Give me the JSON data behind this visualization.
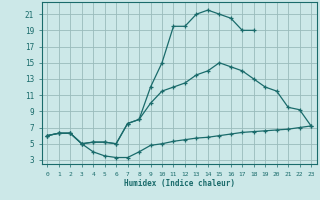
{
  "xlabel": "Humidex (Indice chaleur)",
  "xlim": [
    -0.5,
    23.5
  ],
  "ylim": [
    2.5,
    22.5
  ],
  "xticks": [
    0,
    1,
    2,
    3,
    4,
    5,
    6,
    7,
    8,
    9,
    10,
    11,
    12,
    13,
    14,
    15,
    16,
    17,
    18,
    19,
    20,
    21,
    22,
    23
  ],
  "yticks": [
    3,
    5,
    7,
    9,
    11,
    13,
    15,
    17,
    19,
    21
  ],
  "background_color": "#cce8e8",
  "grid_color": "#99bbbb",
  "line_color": "#1a6b6b",
  "c1_x": [
    0,
    1,
    2,
    3,
    4,
    5,
    6,
    7,
    8,
    9,
    10,
    11,
    12,
    13,
    14,
    15,
    16,
    17,
    18
  ],
  "c1_y": [
    6.0,
    6.3,
    6.3,
    5.0,
    5.2,
    5.2,
    5.0,
    7.5,
    8.0,
    12.0,
    15.0,
    19.5,
    19.5,
    21.0,
    21.5,
    21.0,
    20.5,
    19.0,
    19.0
  ],
  "c2_x": [
    0,
    1,
    2,
    3,
    4,
    5,
    6,
    7,
    8,
    9,
    10,
    11,
    12,
    13,
    14,
    15,
    16,
    17,
    18,
    19,
    20,
    21,
    22,
    23
  ],
  "c2_y": [
    6.0,
    6.3,
    6.3,
    5.0,
    5.2,
    5.2,
    5.0,
    7.5,
    8.0,
    10.0,
    11.5,
    12.0,
    12.5,
    13.5,
    14.0,
    15.0,
    14.5,
    14.0,
    13.0,
    12.0,
    11.5,
    9.5,
    9.2,
    7.2
  ],
  "c3_x": [
    0,
    1,
    2,
    3,
    4,
    5,
    6,
    7,
    8,
    9,
    10,
    11,
    12,
    13,
    14,
    15,
    16,
    17,
    18,
    19,
    20,
    21,
    22,
    23
  ],
  "c3_y": [
    6.0,
    6.3,
    6.3,
    5.0,
    4.0,
    3.5,
    3.3,
    3.3,
    4.0,
    4.8,
    5.0,
    5.3,
    5.5,
    5.7,
    5.8,
    6.0,
    6.2,
    6.4,
    6.5,
    6.6,
    6.7,
    6.8,
    7.0,
    7.2
  ]
}
